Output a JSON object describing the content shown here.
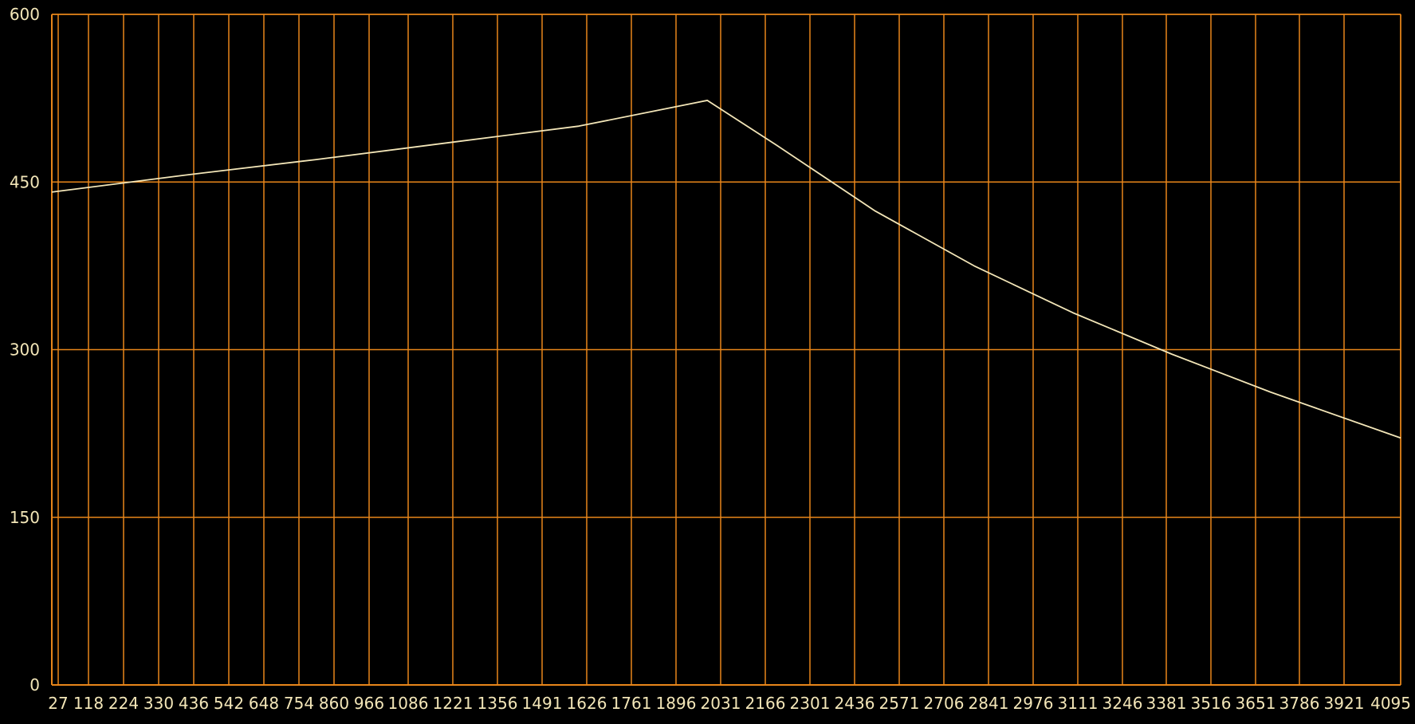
{
  "chart_data": {
    "type": "line",
    "title": "",
    "xlabel": "",
    "ylabel": "",
    "x_tick_labels": [
      "27",
      "118",
      "224",
      "330",
      "436",
      "542",
      "648",
      "754",
      "860",
      "966",
      "1086",
      "1221",
      "1356",
      "1491",
      "1626",
      "1761",
      "1896",
      "2031",
      "2166",
      "2301",
      "2436",
      "2571",
      "2706",
      "2841",
      "2976",
      "3111",
      "3246",
      "3381",
      "3516",
      "3651",
      "3786",
      "3921",
      "4095"
    ],
    "y_tick_labels": [
      "0",
      "150",
      "300",
      "450",
      "600"
    ],
    "y_ticks": [
      0,
      150,
      300,
      450,
      600
    ],
    "ylim": [
      0,
      600
    ],
    "xlim": [
      0,
      4095
    ],
    "grid": true,
    "legend": "none",
    "colors": {
      "background": "#000000",
      "grid": "#e8861a",
      "line": "#f3e6b8",
      "tick_text": "#f3e6b8"
    },
    "series": [
      {
        "points": [
          [
            0,
            441
          ],
          [
            400,
            456
          ],
          [
            800,
            470
          ],
          [
            1200,
            485
          ],
          [
            1600,
            500
          ],
          [
            1990,
            523
          ],
          [
            2200,
            483
          ],
          [
            2500,
            424
          ],
          [
            2800,
            375
          ],
          [
            3100,
            333
          ],
          [
            3400,
            296
          ],
          [
            3700,
            262
          ],
          [
            4095,
            221
          ]
        ]
      }
    ]
  }
}
